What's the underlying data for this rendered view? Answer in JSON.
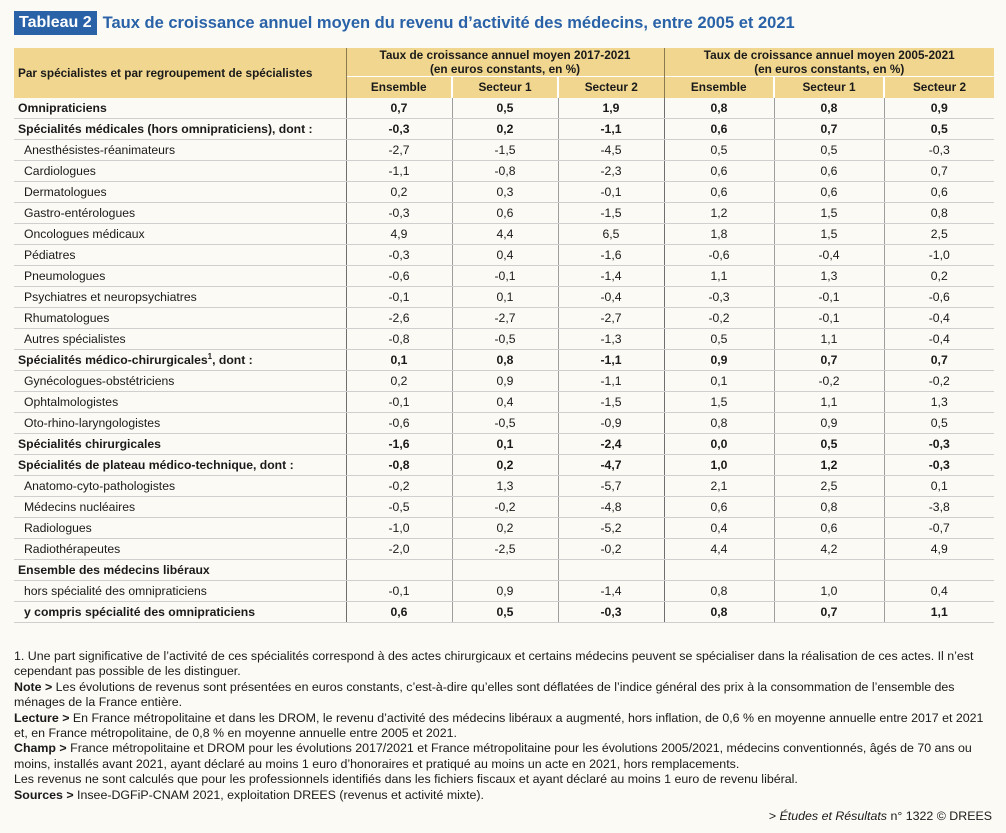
{
  "header": {
    "badge": "Tableau 2",
    "title": "Taux de croissance annuel moyen du revenu d’activité des médecins, entre 2005 et 2021"
  },
  "table": {
    "row_header": "Par spécialistes et par regroupement de spécialistes",
    "groups": [
      {
        "line1": "Taux de croissance annuel moyen 2017-2021",
        "line2": "(en euros constants, en %)"
      },
      {
        "line1": "Taux de croissance annuel moyen 2005-2021",
        "line2": "(en euros constants, en %)"
      }
    ],
    "subheaders": [
      "Ensemble",
      "Secteur 1",
      "Secteur 2",
      "Ensemble",
      "Secteur 1",
      "Secteur 2"
    ],
    "rows": [
      {
        "label": "Omnipraticiens",
        "sup": "",
        "bold": true,
        "indent": false,
        "values": [
          "0,7",
          "0,5",
          "1,9",
          "0,8",
          "0,8",
          "0,9"
        ]
      },
      {
        "label": "Spécialités médicales (hors omnipraticiens), dont :",
        "sup": "",
        "bold": true,
        "indent": false,
        "values": [
          "-0,3",
          "0,2",
          "-1,1",
          "0,6",
          "0,7",
          "0,5"
        ]
      },
      {
        "label": "Anesthésistes-réanimateurs",
        "sup": "",
        "bold": false,
        "indent": true,
        "values": [
          "-2,7",
          "-1,5",
          "-4,5",
          "0,5",
          "0,5",
          "-0,3"
        ]
      },
      {
        "label": "Cardiologues",
        "sup": "",
        "bold": false,
        "indent": true,
        "values": [
          "-1,1",
          "-0,8",
          "-2,3",
          "0,6",
          "0,6",
          "0,7"
        ]
      },
      {
        "label": "Dermatologues",
        "sup": "",
        "bold": false,
        "indent": true,
        "values": [
          "0,2",
          "0,3",
          "-0,1",
          "0,6",
          "0,6",
          "0,6"
        ]
      },
      {
        "label": "Gastro-entérologues",
        "sup": "",
        "bold": false,
        "indent": true,
        "values": [
          "-0,3",
          "0,6",
          "-1,5",
          "1,2",
          "1,5",
          "0,8"
        ]
      },
      {
        "label": "Oncologues médicaux",
        "sup": "",
        "bold": false,
        "indent": true,
        "values": [
          "4,9",
          "4,4",
          "6,5",
          "1,8",
          "1,5",
          "2,5"
        ]
      },
      {
        "label": "Pédiatres",
        "sup": "",
        "bold": false,
        "indent": true,
        "values": [
          "-0,3",
          "0,4",
          "-1,6",
          "-0,6",
          "-0,4",
          "-1,0"
        ]
      },
      {
        "label": "Pneumologues",
        "sup": "",
        "bold": false,
        "indent": true,
        "values": [
          "-0,6",
          "-0,1",
          "-1,4",
          "1,1",
          "1,3",
          "0,2"
        ]
      },
      {
        "label": "Psychiatres et neuropsychiatres",
        "sup": "",
        "bold": false,
        "indent": true,
        "values": [
          "-0,1",
          "0,1",
          "-0,4",
          "-0,3",
          "-0,1",
          "-0,6"
        ]
      },
      {
        "label": "Rhumatologues",
        "sup": "",
        "bold": false,
        "indent": true,
        "values": [
          "-2,6",
          "-2,7",
          "-2,7",
          "-0,2",
          "-0,1",
          "-0,4"
        ]
      },
      {
        "label": "Autres spécialistes",
        "sup": "",
        "bold": false,
        "indent": true,
        "values": [
          "-0,8",
          "-0,5",
          "-1,3",
          "0,5",
          "1,1",
          "-0,4"
        ]
      },
      {
        "label": "Spécialités médico-chirurgicales",
        "sup": "1",
        "suffix": ", dont :",
        "bold": true,
        "indent": false,
        "values": [
          "0,1",
          "0,8",
          "-1,1",
          "0,9",
          "0,7",
          "0,7"
        ]
      },
      {
        "label": "Gynécologues-obstétriciens",
        "sup": "",
        "bold": false,
        "indent": true,
        "values": [
          "0,2",
          "0,9",
          "-1,1",
          "0,1",
          "-0,2",
          "-0,2"
        ]
      },
      {
        "label": "Ophtalmologistes",
        "sup": "",
        "bold": false,
        "indent": true,
        "values": [
          "-0,1",
          "0,4",
          "-1,5",
          "1,5",
          "1,1",
          "1,3"
        ]
      },
      {
        "label": "Oto-rhino-laryngologistes",
        "sup": "",
        "bold": false,
        "indent": true,
        "values": [
          "-0,6",
          "-0,5",
          "-0,9",
          "0,8",
          "0,9",
          "0,5"
        ]
      },
      {
        "label": "Spécialités chirurgicales",
        "sup": "",
        "bold": true,
        "indent": false,
        "values": [
          "-1,6",
          "0,1",
          "-2,4",
          "0,0",
          "0,5",
          "-0,3"
        ]
      },
      {
        "label": "Spécialités de plateau médico-technique, dont :",
        "sup": "",
        "bold": true,
        "indent": false,
        "values": [
          "-0,8",
          "0,2",
          "-4,7",
          "1,0",
          "1,2",
          "-0,3"
        ]
      },
      {
        "label": "Anatomo-cyto-pathologistes",
        "sup": "",
        "bold": false,
        "indent": true,
        "values": [
          "-0,2",
          "1,3",
          "-5,7",
          "2,1",
          "2,5",
          "0,1"
        ]
      },
      {
        "label": "Médecins nucléaires",
        "sup": "",
        "bold": false,
        "indent": true,
        "values": [
          "-0,5",
          "-0,2",
          "-4,8",
          "0,6",
          "0,8",
          "-3,8"
        ]
      },
      {
        "label": "Radiologues",
        "sup": "",
        "bold": false,
        "indent": true,
        "values": [
          "-1,0",
          "0,2",
          "-5,2",
          "0,4",
          "0,6",
          "-0,7"
        ]
      },
      {
        "label": "Radiothérapeutes",
        "sup": "",
        "bold": false,
        "indent": true,
        "values": [
          "-2,0",
          "-2,5",
          "-0,2",
          "4,4",
          "4,2",
          "4,9"
        ]
      },
      {
        "label": "Ensemble des médecins libéraux",
        "sup": "",
        "bold": true,
        "indent": false,
        "values": [
          "",
          "",
          "",
          "",
          "",
          ""
        ]
      },
      {
        "label": "hors spécialité des omnipraticiens",
        "sup": "",
        "bold": false,
        "indent": true,
        "values": [
          "-0,1",
          "0,9",
          "-1,4",
          "0,8",
          "1,0",
          "0,4"
        ]
      },
      {
        "label": "y compris spécialité des omnipraticiens",
        "sup": "",
        "bold": true,
        "indent": true,
        "values": [
          "0,6",
          "0,5",
          "-0,3",
          "0,8",
          "0,7",
          "1,1"
        ]
      }
    ]
  },
  "notes": [
    {
      "label": "",
      "text": "1. Une part significative de l’activité de ces spécialités correspond à des actes chirurgicaux et certains médecins peuvent se spécialiser dans la réalisation de ces actes. Il n’est cependant pas possible de les distinguer."
    },
    {
      "label": "Note >",
      "text": " Les évolutions de revenus sont présentées en euros constants, c’est-à-dire qu’elles sont déflatées de l’indice général des prix à la consommation de l’ensemble des ménages de la France entière."
    },
    {
      "label": "Lecture >",
      "text": " En France métropolitaine et dans les DROM, le revenu d’activité des médecins libéraux a augmenté, hors inflation, de 0,6 % en moyenne annuelle entre 2017 et 2021 et, en France métropolitaine, de 0,8 % en moyenne annuelle entre 2005 et 2021."
    },
    {
      "label": "Champ >",
      "text": " France métropolitaine et DROM pour les évolutions 2017/2021 et France métropolitaine pour les évolutions 2005/2021, médecins conventionnés, âgés de 70 ans ou moins, installés avant 2021, ayant déclaré au moins 1 euro d’honoraires et pratiqué au moins un acte en 2021, hors remplacements."
    },
    {
      "label": "",
      "text": "Les revenus ne sont calculés que pour les professionnels identifiés dans les fichiers fiscaux et ayant déclaré au moins 1 euro de revenu libéral."
    },
    {
      "label": "Sources >",
      "text": " Insee-DGFiP-CNAM 2021, exploitation DREES (revenus et activité mixte)."
    }
  ],
  "source": {
    "prefix": "> ",
    "publication": "Études et Résultats",
    "number": " n° 1322 © DREES"
  }
}
